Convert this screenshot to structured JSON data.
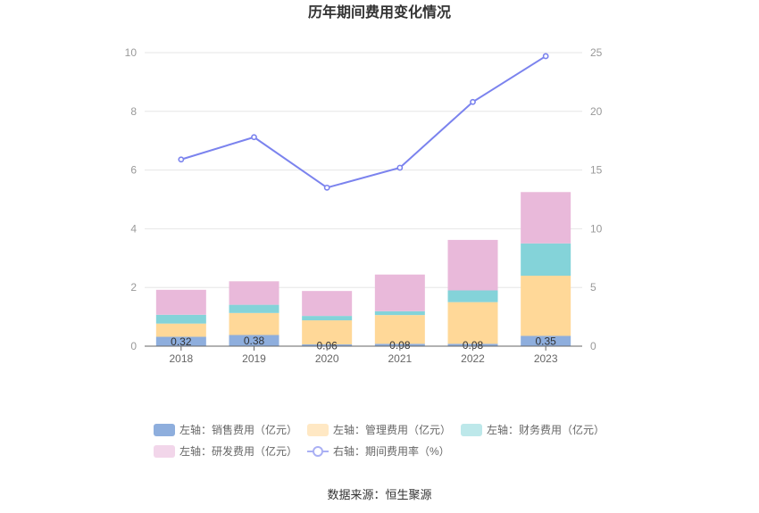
{
  "chart_data": {
    "type": "bar",
    "title": "历年期间费用变化情况",
    "categories": [
      "2018",
      "2019",
      "2020",
      "2021",
      "2022",
      "2023"
    ],
    "stacked": true,
    "y_left": {
      "lim": [
        0,
        10
      ],
      "ticks": [
        0,
        2,
        4,
        6,
        8,
        10
      ]
    },
    "y_right": {
      "lim": [
        0,
        25
      ],
      "ticks": [
        0,
        5,
        10,
        15,
        20,
        25
      ]
    },
    "grid": true,
    "legend_position": "bottom",
    "series": [
      {
        "name": "左轴：销售费用（亿元）",
        "type": "bar",
        "axis": "left",
        "color": "#8eaedd",
        "values": [
          0.32,
          0.38,
          0.06,
          0.08,
          0.08,
          0.35
        ],
        "labels": [
          "0.32",
          "0.38",
          "0.06",
          "0.08",
          "0.08",
          "0.35"
        ]
      },
      {
        "name": "左轴：管理费用（亿元）",
        "type": "bar",
        "axis": "left",
        "color": "#ffd898",
        "legend_color": "#ffe8c4",
        "values": [
          0.45,
          0.75,
          0.82,
          0.98,
          1.42,
          2.05
        ]
      },
      {
        "name": "左轴：财务费用（亿元）",
        "type": "bar",
        "axis": "left",
        "color": "#84d3d9",
        "legend_color": "#bde8ea",
        "values": [
          0.3,
          0.28,
          0.15,
          0.13,
          0.4,
          1.1
        ]
      },
      {
        "name": "左轴：研发费用（亿元）",
        "type": "bar",
        "axis": "left",
        "color": "#e9b9da",
        "legend_color": "#f2d6ea",
        "values": [
          0.85,
          0.8,
          0.85,
          1.25,
          1.72,
          1.75
        ]
      },
      {
        "name": "右轴：期间费用率（%）",
        "type": "line",
        "axis": "right",
        "color": "#7b83ee",
        "values": [
          15.9,
          17.8,
          13.5,
          15.2,
          20.8,
          24.7
        ]
      }
    ]
  },
  "source_text": "数据来源：恒生聚源"
}
